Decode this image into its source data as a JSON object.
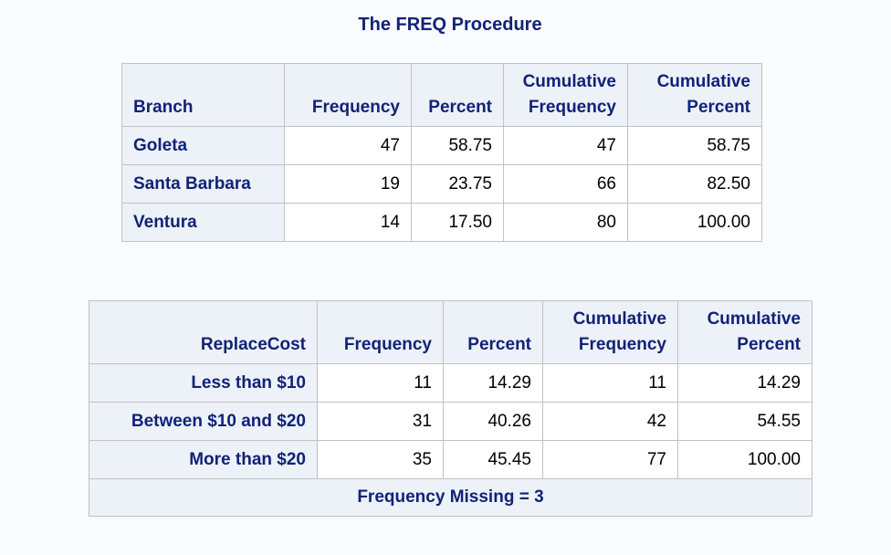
{
  "title": "The FREQ Procedure",
  "branch_table": {
    "headers": {
      "row_var": "Branch",
      "frequency": "Frequency",
      "percent": "Percent",
      "cum_freq_line1": "Cumulative",
      "cum_freq_line2": "Frequency",
      "cum_pct_line1": "Cumulative",
      "cum_pct_line2": "Percent"
    },
    "rows": [
      {
        "label": "Goleta",
        "frequency": "47",
        "percent": "58.75",
        "cum_frequency": "47",
        "cum_percent": "58.75"
      },
      {
        "label": "Santa Barbara",
        "frequency": "19",
        "percent": "23.75",
        "cum_frequency": "66",
        "cum_percent": "82.50"
      },
      {
        "label": "Ventura",
        "frequency": "14",
        "percent": "17.50",
        "cum_frequency": "80",
        "cum_percent": "100.00"
      }
    ]
  },
  "replacecost_table": {
    "headers": {
      "row_var": "ReplaceCost",
      "frequency": "Frequency",
      "percent": "Percent",
      "cum_freq_line1": "Cumulative",
      "cum_freq_line2": "Frequency",
      "cum_pct_line1": "Cumulative",
      "cum_pct_line2": "Percent"
    },
    "rows": [
      {
        "label": "Less than $10",
        "frequency": "11",
        "percent": "14.29",
        "cum_frequency": "11",
        "cum_percent": "14.29"
      },
      {
        "label": "Between $10 and $20",
        "frequency": "31",
        "percent": "40.26",
        "cum_frequency": "42",
        "cum_percent": "54.55"
      },
      {
        "label": "More than $20",
        "frequency": "35",
        "percent": "45.45",
        "cum_frequency": "77",
        "cum_percent": "100.00"
      }
    ],
    "footer": "Frequency Missing = 3"
  }
}
